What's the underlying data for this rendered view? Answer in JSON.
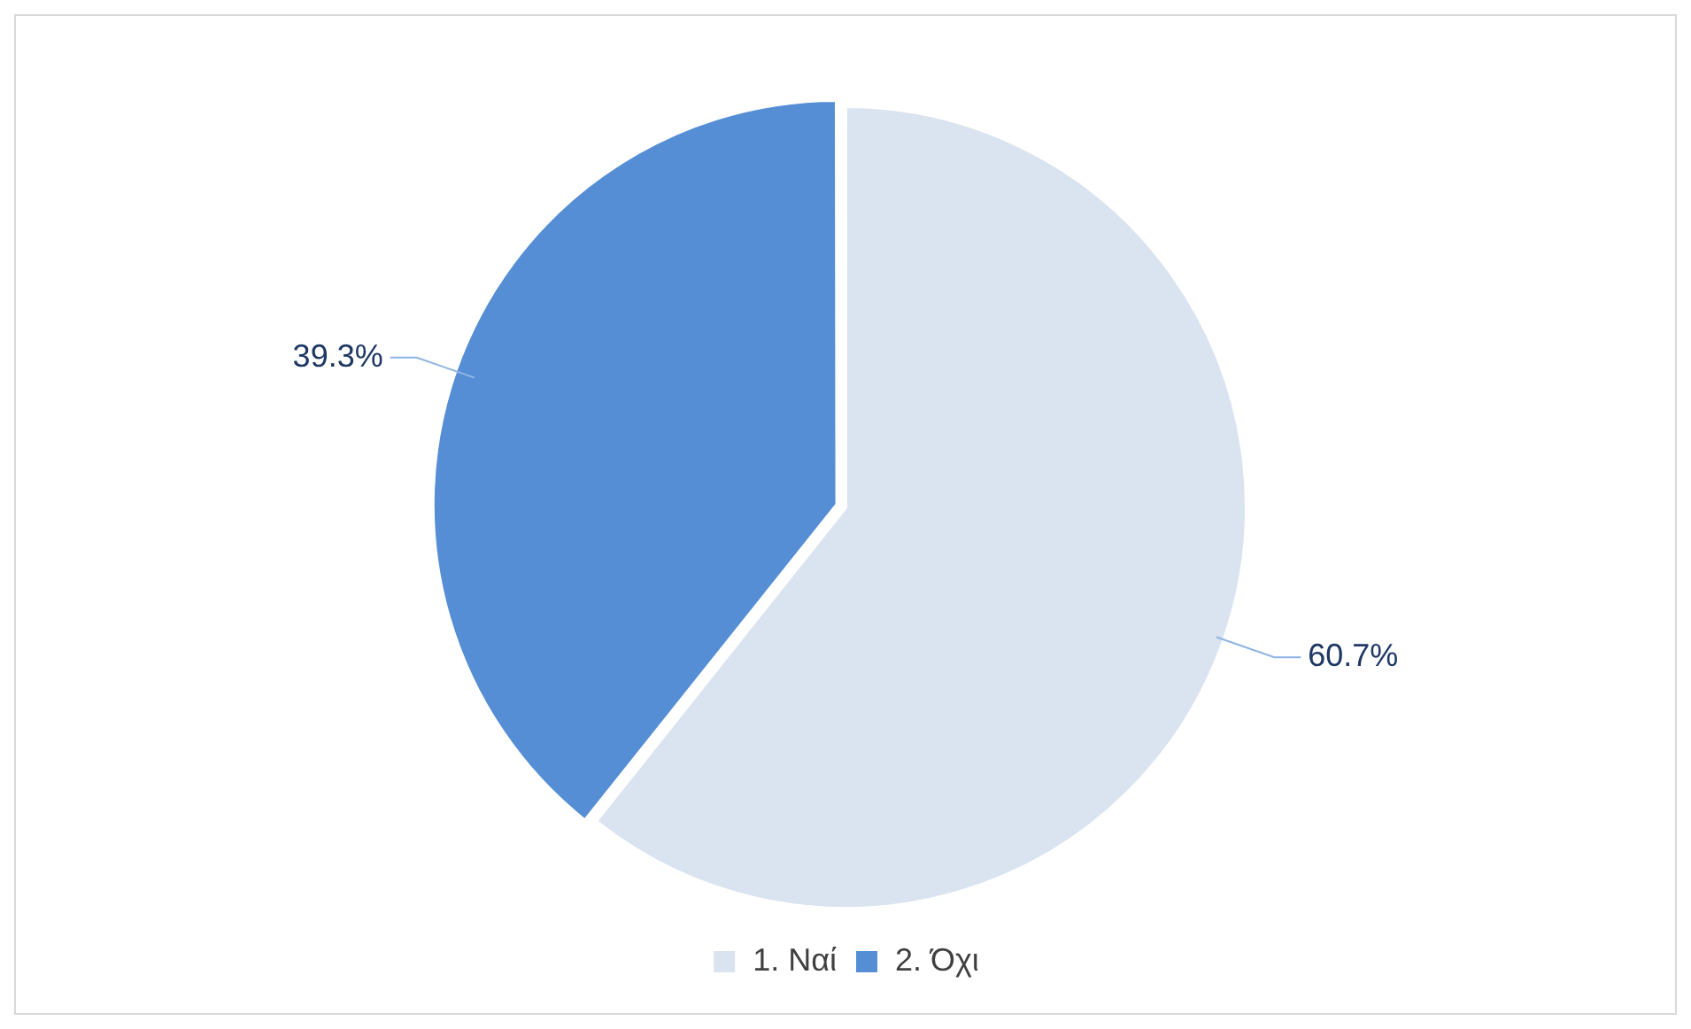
{
  "chart_data": {
    "type": "pie",
    "categories": [
      "1. Ναί",
      "2. Όχι"
    ],
    "values": [
      60.7,
      39.3
    ],
    "colors": [
      "#dae3f0",
      "#558ed5"
    ],
    "value_labels": [
      "60.7%",
      "39.3%"
    ],
    "legend": "bottom"
  }
}
